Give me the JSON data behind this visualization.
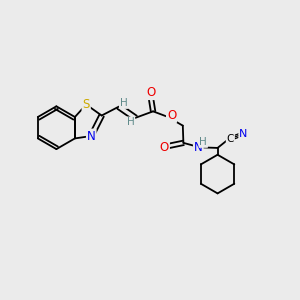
{
  "background_color": "#ebebeb",
  "atom_colors": {
    "C": "#000000",
    "H": "#5f8a8a",
    "N": "#0000ee",
    "O": "#ee0000",
    "S": "#ccaa00"
  },
  "figsize": [
    3.0,
    3.0
  ],
  "dpi": 100
}
